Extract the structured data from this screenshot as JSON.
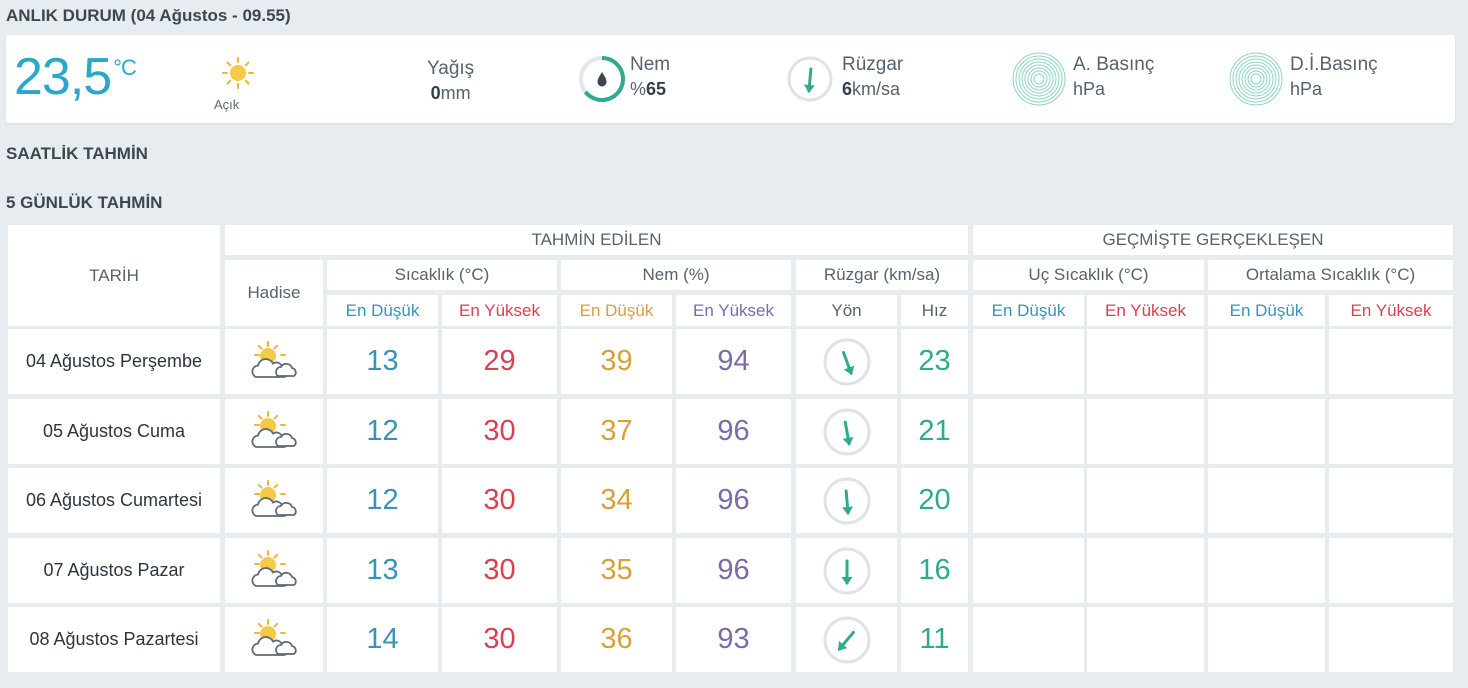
{
  "current": {
    "title_bold": "ANLIK DURUM",
    "title_rest": "(04 Ağustos - 09.55)",
    "temperature": "23,5",
    "temperature_unit": "°C",
    "condition": "Açık",
    "condition_icon": "sun-icon",
    "rain": {
      "label": "Yağış",
      "value": "0",
      "unit": "mm"
    },
    "humidity": {
      "label": "Nem",
      "prefix": "%",
      "value": "65",
      "icon": "humidity-gauge-icon",
      "accent": "#2eaa8e"
    },
    "wind": {
      "label": "Rüzgar",
      "value": "6",
      "unit": "km/sa",
      "icon": "wind-direction-icon"
    },
    "pressure": {
      "label": "A. Basınç",
      "unit": "hPa",
      "icon": "pressure-rings-icon"
    },
    "sea_pressure": {
      "label": "D.İ.Basınç",
      "unit": "hPa",
      "icon": "pressure-rings-icon"
    }
  },
  "hourly_title": "SAATLİK TAHMİN",
  "daily_title": "5 GÜNLÜK TAHMİN",
  "table": {
    "date_header": "TARİH",
    "forecast_header": "TAHMİN EDİLEN",
    "past_header": "GEÇMİŞTE GERÇEKLEŞEN",
    "event_header": "Hadise",
    "temp_header": "Sıcaklık (°C)",
    "humidity_header": "Nem (%)",
    "wind_header": "Rüzgar (km/sa)",
    "extreme_temp_header": "Uç Sıcaklık (°C)",
    "avg_temp_header": "Ortalama Sıcaklık (°C)",
    "low": "En Düşük",
    "high": "En Yüksek",
    "direction": "Yön",
    "speed": "Hız",
    "colors": {
      "low": "#3a93b6",
      "high": "#dc3f52",
      "humidity_low": "#d8a038",
      "humidity_high": "#7b6bab",
      "speed": "#2eaa8e"
    },
    "rows": [
      {
        "date": "04 Ağustos Perşembe",
        "icon": "partly-cloudy-icon",
        "temp_low": "13",
        "temp_high": "29",
        "hum_low": "39",
        "hum_high": "94",
        "wind_dir_deg": 160,
        "wind_speed": "23"
      },
      {
        "date": "05 Ağustos Cuma",
        "icon": "partly-cloudy-icon",
        "temp_low": "12",
        "temp_high": "30",
        "hum_low": "37",
        "hum_high": "96",
        "wind_dir_deg": 170,
        "wind_speed": "21"
      },
      {
        "date": "06 Ağustos Cumartesi",
        "icon": "partly-cloudy-icon",
        "temp_low": "12",
        "temp_high": "30",
        "hum_low": "34",
        "hum_high": "96",
        "wind_dir_deg": 175,
        "wind_speed": "20"
      },
      {
        "date": "07 Ağustos Pazar",
        "icon": "partly-cloudy-icon",
        "temp_low": "13",
        "temp_high": "30",
        "hum_low": "35",
        "hum_high": "96",
        "wind_dir_deg": 180,
        "wind_speed": "16"
      },
      {
        "date": "08 Ağustos Pazartesi",
        "icon": "partly-cloudy-icon",
        "temp_low": "14",
        "temp_high": "30",
        "hum_low": "36",
        "hum_high": "93",
        "wind_dir_deg": 220,
        "wind_speed": "11"
      }
    ]
  }
}
